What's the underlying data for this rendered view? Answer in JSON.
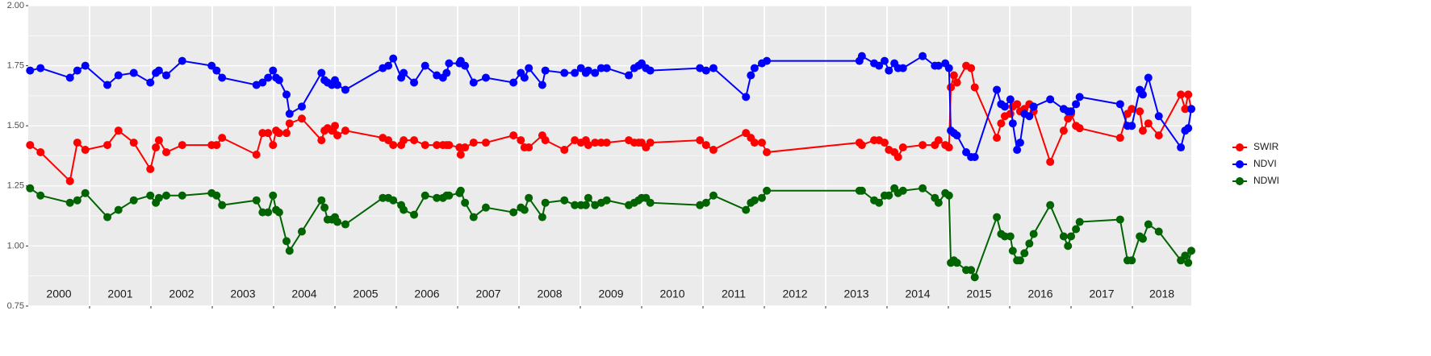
{
  "chart_data": {
    "type": "line",
    "x": [
      2000.03,
      2000.2,
      2000.68,
      2000.8,
      2000.93,
      2001.29,
      2001.47,
      2001.72,
      2001.99,
      2002.08,
      2002.13,
      2002.25,
      2002.51,
      2002.99,
      2003.07,
      2003.16,
      2003.72,
      2003.82,
      2003.91,
      2003.99,
      2004.04,
      2004.09,
      2004.21,
      2004.26,
      2004.46,
      2004.78,
      2004.83,
      2004.88,
      2004.95,
      2005.0,
      2005.04,
      2005.17,
      2005.78,
      2005.87,
      2005.95,
      2006.08,
      2006.12,
      2006.29,
      2006.47,
      2006.66,
      2006.76,
      2006.82,
      2006.86,
      2007.03,
      2007.05,
      2007.12,
      2007.26,
      2007.46,
      2007.91,
      2008.03,
      2008.09,
      2008.16,
      2008.38,
      2008.43,
      2008.74,
      2008.91,
      2009.01,
      2009.09,
      2009.13,
      2009.24,
      2009.34,
      2009.43,
      2009.79,
      2009.88,
      2009.95,
      2010.0,
      2010.07,
      2010.14,
      2010.95,
      2011.05,
      2011.17,
      2011.7,
      2011.78,
      2011.84,
      2011.96,
      2012.04,
      2013.55,
      2013.59,
      2013.79,
      2013.87,
      2013.96,
      2014.03,
      2014.12,
      2014.18,
      2014.26,
      2014.58,
      2014.78,
      2014.84,
      2014.95,
      2015.01,
      2015.04,
      2015.09,
      2015.14,
      2015.29,
      2015.37,
      2015.43,
      2015.79,
      2015.86,
      2015.92,
      2016.01,
      2016.05,
      2016.12,
      2016.17,
      2016.24,
      2016.32,
      2016.39,
      2016.66,
      2016.88,
      2016.95,
      2017.0,
      2017.08,
      2017.14,
      2017.8,
      2017.92,
      2017.99,
      2018.12,
      2018.17,
      2018.26,
      2018.43,
      2018.79,
      2018.86,
      2018.91,
      2018.96
    ],
    "series": [
      {
        "name": "SWIR",
        "color": "#ff0000",
        "values": [
          1.42,
          1.39,
          1.27,
          1.43,
          1.4,
          1.42,
          1.48,
          1.43,
          1.32,
          1.41,
          1.44,
          1.39,
          1.42,
          1.42,
          1.42,
          1.45,
          1.38,
          1.47,
          1.47,
          1.42,
          1.48,
          1.47,
          1.47,
          1.51,
          1.53,
          1.44,
          1.48,
          1.49,
          1.48,
          1.5,
          1.46,
          1.48,
          1.45,
          1.44,
          1.42,
          1.42,
          1.44,
          1.44,
          1.42,
          1.42,
          1.42,
          1.42,
          1.42,
          1.41,
          1.38,
          1.41,
          1.43,
          1.43,
          1.46,
          1.44,
          1.41,
          1.41,
          1.46,
          1.44,
          1.4,
          1.44,
          1.43,
          1.44,
          1.42,
          1.43,
          1.43,
          1.43,
          1.44,
          1.43,
          1.43,
          1.43,
          1.41,
          1.43,
          1.44,
          1.42,
          1.4,
          1.47,
          1.45,
          1.43,
          1.43,
          1.39,
          1.43,
          1.42,
          1.44,
          1.44,
          1.43,
          1.4,
          1.39,
          1.37,
          1.41,
          1.42,
          1.42,
          1.44,
          1.42,
          1.41,
          1.66,
          1.71,
          1.68,
          1.75,
          1.74,
          1.66,
          1.45,
          1.51,
          1.54,
          1.55,
          1.58,
          1.59,
          1.56,
          1.57,
          1.59,
          1.56,
          1.35,
          1.48,
          1.53,
          1.55,
          1.5,
          1.49,
          1.45,
          1.55,
          1.57,
          1.56,
          1.48,
          1.51,
          1.46,
          1.63,
          1.57,
          1.63,
          1.57
        ]
      },
      {
        "name": "NDVI",
        "color": "#0000ff",
        "values": [
          1.73,
          1.74,
          1.7,
          1.73,
          1.75,
          1.67,
          1.71,
          1.72,
          1.68,
          1.72,
          1.73,
          1.71,
          1.77,
          1.75,
          1.73,
          1.7,
          1.67,
          1.68,
          1.7,
          1.73,
          1.7,
          1.69,
          1.63,
          1.55,
          1.58,
          1.72,
          1.69,
          1.68,
          1.67,
          1.69,
          1.67,
          1.65,
          1.74,
          1.75,
          1.78,
          1.7,
          1.72,
          1.68,
          1.75,
          1.71,
          1.7,
          1.72,
          1.76,
          1.76,
          1.77,
          1.75,
          1.68,
          1.7,
          1.68,
          1.72,
          1.7,
          1.74,
          1.67,
          1.73,
          1.72,
          1.72,
          1.74,
          1.72,
          1.73,
          1.72,
          1.74,
          1.74,
          1.71,
          1.74,
          1.75,
          1.76,
          1.74,
          1.73,
          1.74,
          1.73,
          1.74,
          1.62,
          1.71,
          1.74,
          1.76,
          1.77,
          1.77,
          1.79,
          1.76,
          1.75,
          1.77,
          1.73,
          1.76,
          1.74,
          1.74,
          1.79,
          1.75,
          1.75,
          1.76,
          1.74,
          1.48,
          1.47,
          1.46,
          1.39,
          1.37,
          1.37,
          1.65,
          1.59,
          1.58,
          1.61,
          1.51,
          1.4,
          1.43,
          1.55,
          1.54,
          1.58,
          1.61,
          1.57,
          1.56,
          1.56,
          1.59,
          1.62,
          1.59,
          1.5,
          1.5,
          1.65,
          1.63,
          1.7,
          1.54,
          1.41,
          1.48,
          1.49,
          1.57
        ]
      },
      {
        "name": "NDWI",
        "color": "#006400",
        "values": [
          1.24,
          1.21,
          1.18,
          1.19,
          1.22,
          1.12,
          1.15,
          1.19,
          1.21,
          1.18,
          1.2,
          1.21,
          1.21,
          1.22,
          1.21,
          1.17,
          1.19,
          1.14,
          1.14,
          1.21,
          1.15,
          1.14,
          1.02,
          0.98,
          1.06,
          1.19,
          1.16,
          1.11,
          1.11,
          1.12,
          1.1,
          1.09,
          1.2,
          1.2,
          1.19,
          1.17,
          1.15,
          1.13,
          1.21,
          1.2,
          1.2,
          1.21,
          1.21,
          1.22,
          1.23,
          1.18,
          1.12,
          1.16,
          1.14,
          1.16,
          1.15,
          1.2,
          1.12,
          1.18,
          1.19,
          1.17,
          1.17,
          1.17,
          1.2,
          1.17,
          1.18,
          1.19,
          1.17,
          1.18,
          1.19,
          1.2,
          1.2,
          1.18,
          1.17,
          1.18,
          1.21,
          1.15,
          1.18,
          1.19,
          1.2,
          1.23,
          1.23,
          1.23,
          1.19,
          1.18,
          1.21,
          1.21,
          1.24,
          1.22,
          1.23,
          1.24,
          1.2,
          1.18,
          1.22,
          1.21,
          0.93,
          0.94,
          0.93,
          0.9,
          0.9,
          0.87,
          1.12,
          1.05,
          1.04,
          1.04,
          0.98,
          0.94,
          0.94,
          0.97,
          1.01,
          1.05,
          1.17,
          1.04,
          1.0,
          1.04,
          1.07,
          1.1,
          1.11,
          0.94,
          0.94,
          1.04,
          1.03,
          1.09,
          1.06,
          0.94,
          0.96,
          0.93,
          0.98
        ]
      }
    ],
    "xlim": [
      2000,
      2018.96
    ],
    "xticks": [
      2001,
      2002,
      2003,
      2004,
      2005,
      2006,
      2007,
      2008,
      2009,
      2010,
      2011,
      2012,
      2013,
      2014,
      2015,
      2016,
      2017,
      2018
    ],
    "year_labels": [
      "2000",
      "2001",
      "2002",
      "2003",
      "2004",
      "2005",
      "2006",
      "2007",
      "2008",
      "2009",
      "2010",
      "2011",
      "2012",
      "2013",
      "2014",
      "2015",
      "2016",
      "2017",
      "2018"
    ],
    "ylim": [
      0.75,
      2.0
    ],
    "yticks": [
      {
        "value": 0.75,
        "label": "0.75"
      },
      {
        "value": 1.0,
        "label": "1.00"
      },
      {
        "value": 1.25,
        "label": "1.25"
      },
      {
        "value": 1.5,
        "label": "1.50"
      },
      {
        "value": 1.75,
        "label": "1.75"
      },
      {
        "value": 2.0,
        "label": "2.00"
      }
    ],
    "grid": true,
    "legend": "right"
  }
}
